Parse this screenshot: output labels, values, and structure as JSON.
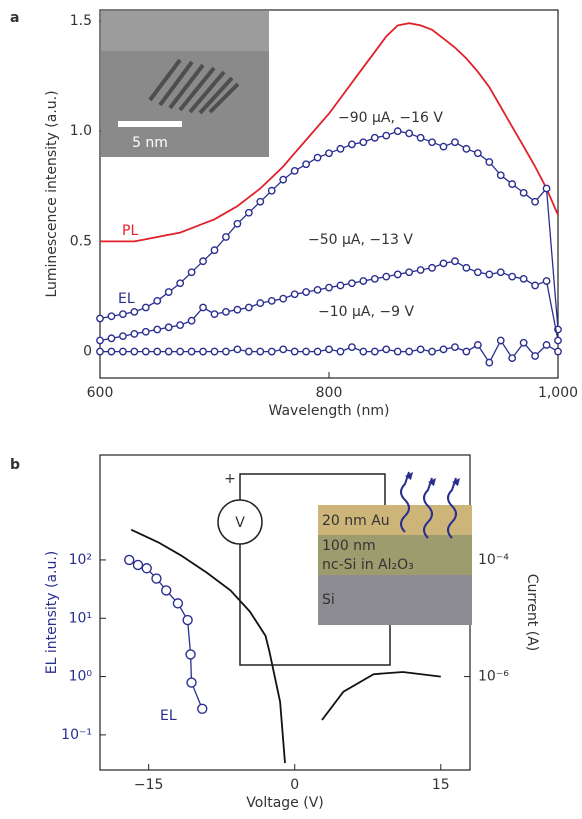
{
  "chart_data": [
    {
      "type": "line",
      "panel_label": "a",
      "x_label": "Wavelength (nm)",
      "y_label": "Luminescence intensity (a.u.)",
      "xlim": [
        600,
        1000
      ],
      "ylim": [
        -0.12,
        1.55
      ],
      "xticks": [
        600,
        800,
        {
          "value": 1000,
          "label": "1,000"
        }
      ],
      "yticks": [
        0,
        0.5,
        {
          "value": 1,
          "label": "1.0"
        },
        1.5
      ],
      "x": [
        600,
        610,
        620,
        630,
        640,
        650,
        660,
        670,
        680,
        690,
        700,
        710,
        720,
        730,
        740,
        750,
        760,
        770,
        780,
        790,
        800,
        810,
        820,
        830,
        840,
        850,
        860,
        870,
        880,
        890,
        900,
        910,
        920,
        930,
        940,
        950,
        960,
        970,
        980,
        990,
        1000
      ],
      "series": [
        {
          "name": "PL",
          "color": "#e0202a",
          "values": [
            0.5,
            0.5,
            0.5,
            0.5,
            0.51,
            0.52,
            0.53,
            0.54,
            0.56,
            0.58,
            0.6,
            0.63,
            0.66,
            0.7,
            0.74,
            0.79,
            0.84,
            0.9,
            0.96,
            1.02,
            1.08,
            1.15,
            1.22,
            1.29,
            1.36,
            1.43,
            1.48,
            1.49,
            1.48,
            1.46,
            1.42,
            1.38,
            1.33,
            1.27,
            1.2,
            1.11,
            1.02,
            0.93,
            0.84,
            0.74,
            0.62
          ]
        },
        {
          "name": "−90 µA, −16 V",
          "color": "#2a2f8f",
          "marker": "circle",
          "values": [
            0.15,
            0.16,
            0.17,
            0.18,
            0.2,
            0.23,
            0.27,
            0.31,
            0.36,
            0.41,
            0.46,
            0.52,
            0.58,
            0.63,
            0.68,
            0.73,
            0.78,
            0.82,
            0.85,
            0.88,
            0.9,
            0.92,
            0.94,
            0.95,
            0.97,
            0.98,
            1.0,
            0.99,
            0.97,
            0.95,
            0.93,
            0.95,
            0.92,
            0.9,
            0.86,
            0.8,
            0.76,
            0.72,
            0.68,
            0.74,
            0.1
          ]
        },
        {
          "name": "−50 µA, −13 V",
          "color": "#2a2f8f",
          "marker": "circle",
          "values": [
            0.05,
            0.06,
            0.07,
            0.08,
            0.09,
            0.1,
            0.11,
            0.12,
            0.14,
            0.2,
            0.17,
            0.18,
            0.19,
            0.2,
            0.22,
            0.23,
            0.24,
            0.26,
            0.27,
            0.28,
            0.29,
            0.3,
            0.31,
            0.32,
            0.33,
            0.34,
            0.35,
            0.36,
            0.37,
            0.38,
            0.4,
            0.41,
            0.38,
            0.36,
            0.35,
            0.36,
            0.34,
            0.33,
            0.3,
            0.32,
            0.05
          ]
        },
        {
          "name": "−10 µA, −9 V",
          "color": "#2a2f8f",
          "marker": "circle",
          "values": [
            0,
            0,
            0,
            0,
            0,
            0,
            0,
            0,
            0,
            0,
            0,
            0,
            0.01,
            0,
            0,
            0,
            0.01,
            0,
            0,
            0,
            0.01,
            0,
            0.02,
            0,
            0,
            0.01,
            0,
            0,
            0.01,
            0,
            0.01,
            0.02,
            0,
            0.03,
            -0.05,
            0.05,
            -0.03,
            0.04,
            -0.02,
            0.03,
            0
          ]
        }
      ],
      "annotation": "EL",
      "inset": {
        "scale_bar": "5 nm"
      }
    },
    {
      "type": "line",
      "panel_label": "b",
      "x_label": "Voltage (V)",
      "y_label": "EL intensity (a.u.)",
      "y2_label": "Current (A)",
      "xlim": [
        -20,
        18
      ],
      "ylim": [
        0.025,
        6300
      ],
      "y2lim": [
        2.5e-08,
        0.0063
      ],
      "yscale": "log",
      "y2scale": "log",
      "xticks": [
        {
          "value": -15,
          "label": "−15"
        },
        0,
        15
      ],
      "yticks": [
        {
          "value": 0.1,
          "label": "10⁻¹"
        },
        {
          "value": 1,
          "label": "10⁰"
        },
        {
          "value": 10,
          "label": "10¹"
        },
        {
          "value": 100,
          "label": "10²"
        }
      ],
      "y2ticks": [
        {
          "value": 1e-06,
          "label": "10⁻⁶"
        },
        {
          "value": 0.0001,
          "label": "10⁻⁴"
        }
      ],
      "series": [
        {
          "name": "EL",
          "color": "#2a2f8f",
          "marker": "circle",
          "x": [
            -17.0,
            -16.1,
            -15.2,
            -14.2,
            -13.2,
            -12.0,
            -11.0,
            -10.7,
            -10.6,
            -9.5
          ],
          "values": [
            100,
            82,
            72,
            48,
            30,
            18,
            9.3,
            2.4,
            0.79,
            0.28
          ]
        },
        {
          "color": "#111111",
          "axis": "y2",
          "x": [
            -16.8,
            -14,
            -11.7,
            -9,
            -6.6,
            -4.6,
            -3,
            -2.6,
            -1.5,
            -1,
            null,
            2.8,
            5,
            8.1,
            11.1,
            15
          ],
          "values": [
            0.00033,
            0.0002,
            0.00012,
            6e-05,
            3e-05,
            1.3e-05,
            5e-06,
            2.7e-06,
            3.7e-07,
            3.3e-08,
            null,
            1.8e-07,
            5.5e-07,
            1.1e-06,
            1.2e-06,
            1e-06
          ]
        }
      ],
      "inset": {
        "source": "V",
        "polarity": "+",
        "layers": [
          "20 nm Au",
          "100 nm",
          "nc-Si in Al₂O₃",
          "Si"
        ]
      }
    }
  ]
}
